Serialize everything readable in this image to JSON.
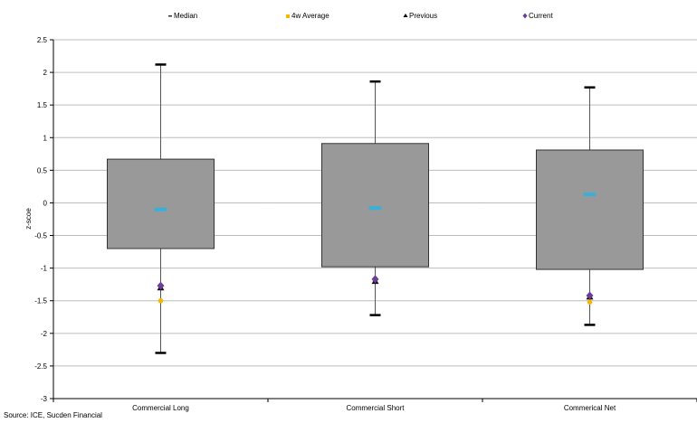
{
  "chart_data": {
    "type": "box",
    "categories": [
      "Commercial Long",
      "Commercial Short",
      "Commerical Net"
    ],
    "ylabel": "z-scoe",
    "ylim": [
      -3,
      2.5
    ],
    "yticks": [
      "2.5",
      "2",
      "1.5",
      "1",
      "0.5",
      "0",
      "-0.5",
      "-1",
      "-1.5",
      "-2",
      "-2.5",
      "-3"
    ],
    "grid": true,
    "legend_position": "top",
    "legend": [
      {
        "name": "Median",
        "marker": "dash",
        "color": "#3ab0d8"
      },
      {
        "name": "4w Average",
        "marker": "square",
        "color": "#f5b800"
      },
      {
        "name": "Previous",
        "marker": "triangle",
        "color": "#000000"
      },
      {
        "name": "Current",
        "marker": "diamond",
        "color": "#6a3d9a"
      }
    ],
    "boxes": [
      {
        "category": "Commercial Long",
        "min": -2.3,
        "q1": -0.7,
        "q3": 0.67,
        "max": 2.12,
        "median": -0.1,
        "avg4w": -1.5,
        "previous": -1.3,
        "current": -1.27
      },
      {
        "category": "Commercial Short",
        "min": -1.72,
        "q1": -0.98,
        "q3": 0.91,
        "max": 1.86,
        "median": -0.08,
        "avg4w": -1.2,
        "previous": -1.2,
        "current": -1.17
      },
      {
        "category": "Commerical Net",
        "min": -1.87,
        "q1": -1.02,
        "q3": 0.81,
        "max": 1.77,
        "median": 0.13,
        "avg4w": -1.52,
        "previous": -1.44,
        "current": -1.42
      }
    ],
    "box_color": "#999999"
  },
  "source": "Source: ICE, Sucden Financial"
}
